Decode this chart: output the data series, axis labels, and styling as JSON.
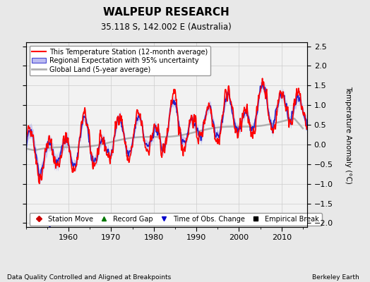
{
  "title": "WALPEUP RESEARCH",
  "subtitle": "35.118 S, 142.002 E (Australia)",
  "ylabel": "Temperature Anomaly (°C)",
  "footer_left": "Data Quality Controlled and Aligned at Breakpoints",
  "footer_right": "Berkeley Earth",
  "xlim": [
    1950,
    2016
  ],
  "ylim": [
    -2.1,
    2.6
  ],
  "yticks": [
    -2,
    -1.5,
    -1,
    -0.5,
    0,
    0.5,
    1,
    1.5,
    2,
    2.5
  ],
  "xticks": [
    1960,
    1970,
    1980,
    1990,
    2000,
    2010
  ],
  "bg_color": "#e8e8e8",
  "plot_bg_color": "#f2f2f2",
  "station_color": "#ff0000",
  "regional_color": "#2222cc",
  "global_color": "#b0b0b0",
  "uncertainty_color": "#aaaaee",
  "uncertainty_alpha": 0.55,
  "station_lw": 1.2,
  "regional_lw": 1.2,
  "global_lw": 1.8,
  "legend_labels": [
    "This Temperature Station (12-month average)",
    "Regional Expectation with 95% uncertainty",
    "Global Land (5-year average)"
  ],
  "marker_legend": [
    {
      "label": "Station Move",
      "marker": "D",
      "color": "#cc0000"
    },
    {
      "label": "Record Gap",
      "marker": "^",
      "color": "#007700"
    },
    {
      "label": "Time of Obs. Change",
      "marker": "v",
      "color": "#0000cc"
    },
    {
      "label": "Empirical Break",
      "marker": "s",
      "color": "#000000"
    }
  ],
  "obs_change_x": 1955.5,
  "obs_change_y": -2.05,
  "grid_color": "#cccccc",
  "title_fontsize": 11,
  "subtitle_fontsize": 8.5,
  "tick_fontsize": 8,
  "ylabel_fontsize": 7.5,
  "legend_fontsize": 7,
  "marker_legend_fontsize": 7
}
